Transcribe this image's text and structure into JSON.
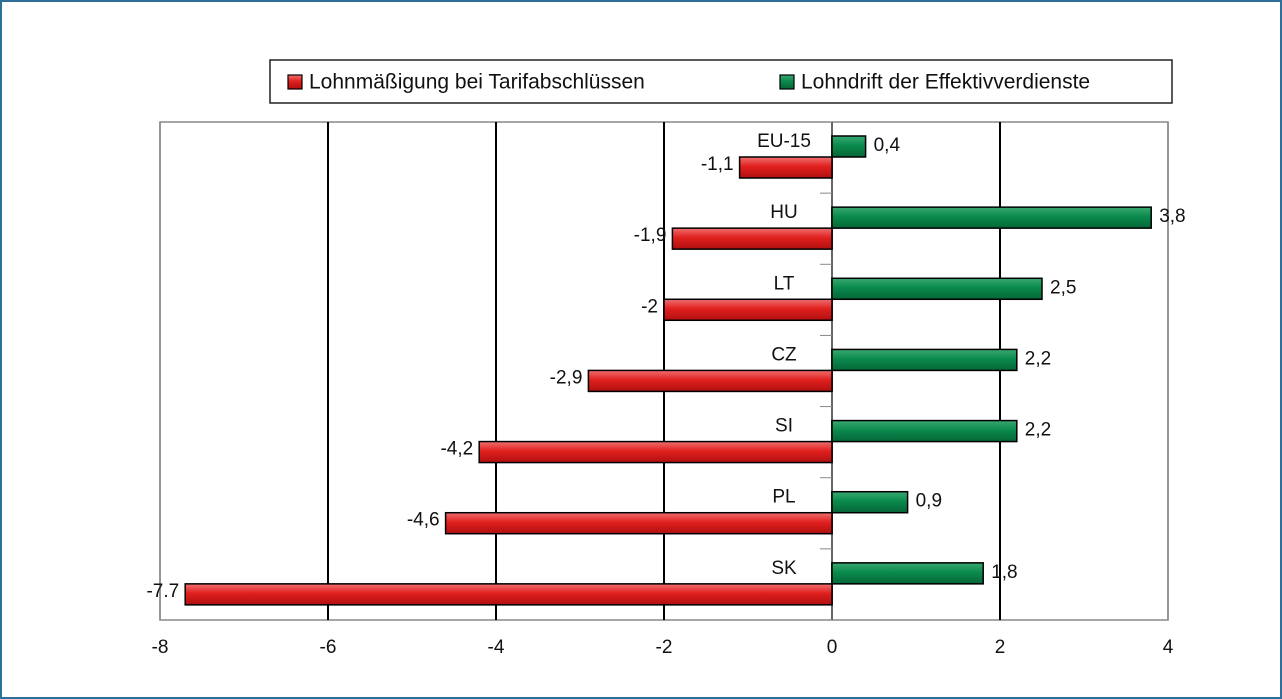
{
  "chart_data": {
    "type": "hbar",
    "categories": [
      "EU-15",
      "HU",
      "LT",
      "CZ",
      "SI",
      "PL",
      "SK"
    ],
    "series": [
      {
        "name": "Lohnmäßigung bei Tarifabschlüssen",
        "color": "#e0201e",
        "values": [
          -1.1,
          -1.9,
          -2,
          -2.9,
          -4.2,
          -4.6,
          -7.7
        ],
        "value_labels": [
          "-1,1",
          "-1,9",
          "-2",
          "-2,9",
          "-4,2",
          "-4,6",
          "-7.7"
        ]
      },
      {
        "name": "Lohndrift der Effektivverdienste",
        "color": "#0a8a4c",
        "values": [
          0.4,
          3.8,
          2.5,
          2.2,
          2.2,
          0.9,
          1.8
        ],
        "value_labels": [
          "0,4",
          "3,8",
          "2,5",
          "2,2",
          "2,2",
          "0,9",
          "1,8"
        ]
      }
    ],
    "xlim": [
      -8,
      4
    ],
    "xticks": [
      -8,
      -6,
      -4,
      -2,
      0,
      2,
      4
    ],
    "grid": true,
    "legend": "top"
  }
}
